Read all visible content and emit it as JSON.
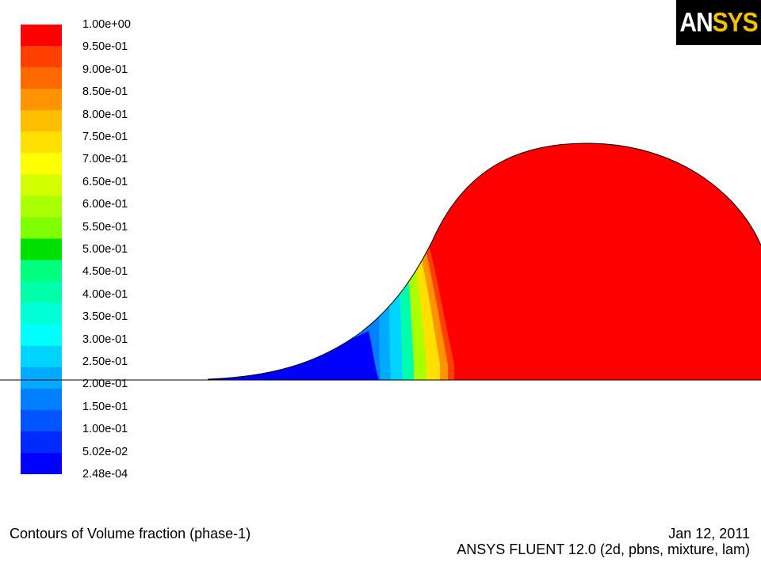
{
  "chart_data": {
    "type": "heatmap",
    "title": "Contours of Volume fraction (phase-1)",
    "colorbar": {
      "levels": [
        "1.00e+00",
        "9.50e-01",
        "9.00e-01",
        "8.50e-01",
        "8.00e-01",
        "7.50e-01",
        "7.00e-01",
        "6.50e-01",
        "6.00e-01",
        "5.50e-01",
        "5.00e-01",
        "4.50e-01",
        "4.00e-01",
        "3.50e-01",
        "3.00e-01",
        "2.50e-01",
        "2.00e-01",
        "1.50e-01",
        "1.00e-01",
        "5.02e-02",
        "2.48e-04"
      ],
      "colors": [
        "#ff0000",
        "#ff4000",
        "#ff6a00",
        "#ff9400",
        "#ffbe00",
        "#ffe000",
        "#ffff00",
        "#d4ff00",
        "#aaff00",
        "#7fff00",
        "#00e000",
        "#00ff7f",
        "#00ffaa",
        "#00ffd4",
        "#00ffff",
        "#00d4ff",
        "#00aaff",
        "#007fff",
        "#0055ff",
        "#002aff",
        "#0000ff"
      ]
    },
    "field_colors": {
      "liquid": "#ff0000",
      "front": [
        "#ff4000",
        "#ff9400",
        "#ffe000",
        "#aaff00",
        "#00ffaa",
        "#00d4ff",
        "#00aaff",
        "#007fff"
      ],
      "gas": "#0000ff"
    }
  },
  "logo": {
    "an": "AN",
    "sys": "SYS"
  },
  "footer": {
    "date": "Jan 12, 2011",
    "solver": "ANSYS FLUENT 12.0 (2d, pbns, mixture, lam)"
  }
}
